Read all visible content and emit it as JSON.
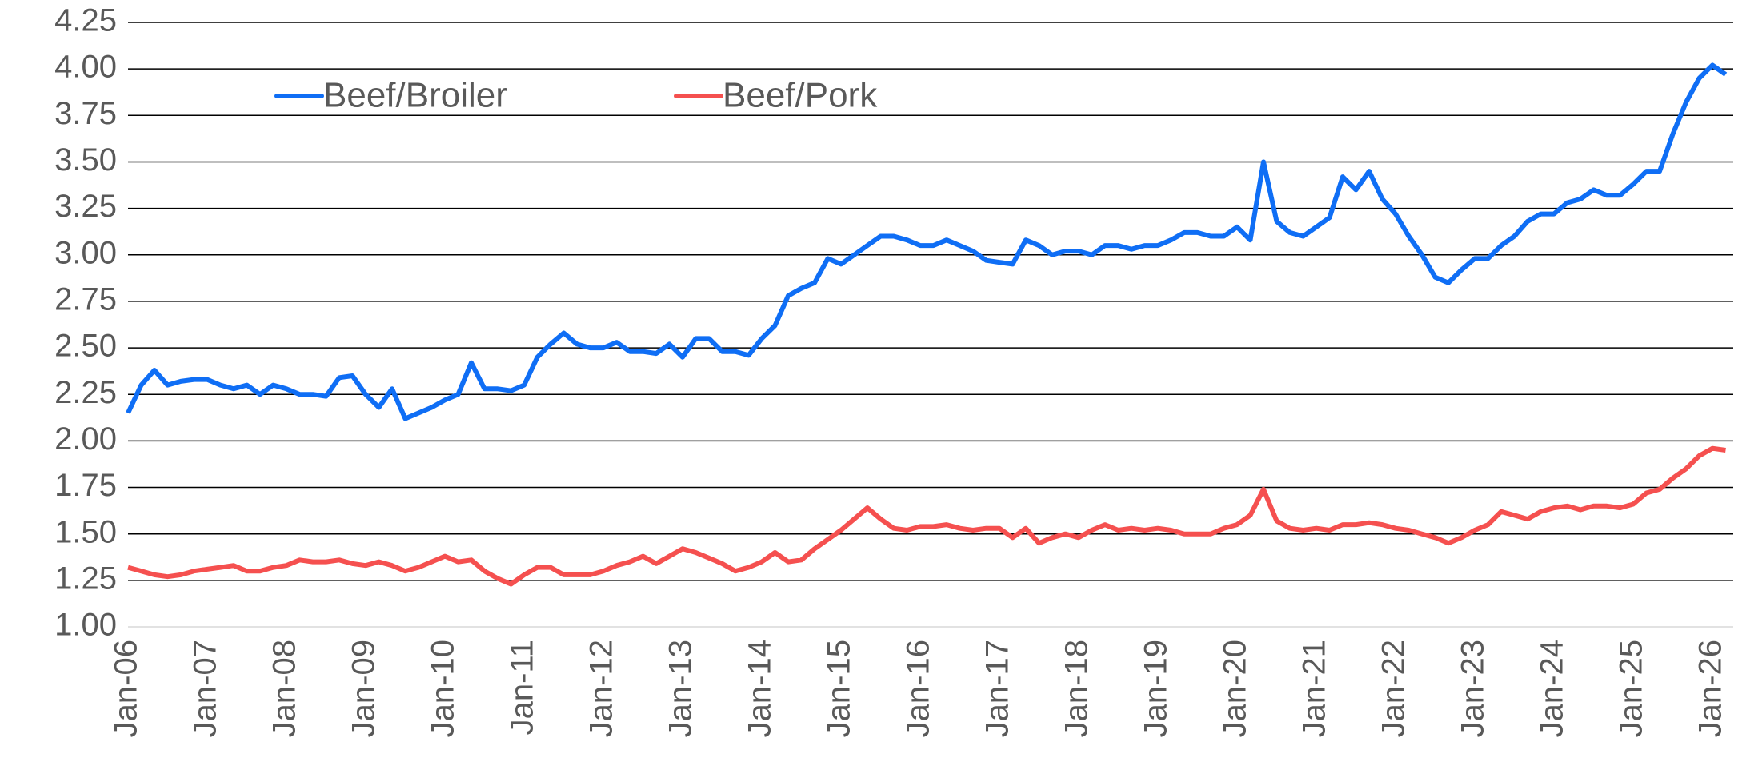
{
  "chart_data": {
    "type": "line",
    "categories": [
      "Jan-06",
      null,
      null,
      null,
      null,
      null,
      "Jan-07",
      null,
      null,
      null,
      null,
      null,
      "Jan-08",
      null,
      null,
      null,
      null,
      null,
      "Jan-09",
      null,
      null,
      null,
      null,
      null,
      "Jan-10",
      null,
      null,
      null,
      null,
      null,
      "Jan-11",
      null,
      null,
      null,
      null,
      null,
      "Jan-12",
      null,
      null,
      null,
      null,
      null,
      "Jan-13",
      null,
      null,
      null,
      null,
      null,
      "Jan-14",
      null,
      null,
      null,
      null,
      null,
      "Jan-15",
      null,
      null,
      null,
      null,
      null,
      "Jan-16",
      null,
      null,
      null,
      null,
      null,
      "Jan-17",
      null,
      null,
      null,
      null,
      null,
      "Jan-18",
      null,
      null,
      null,
      null,
      null,
      "Jan-19",
      null,
      null,
      null,
      null,
      null,
      "Jan-20",
      null,
      null,
      null,
      null,
      null,
      "Jan-21",
      null,
      null,
      null,
      null,
      null,
      "Jan-22",
      null,
      null,
      null,
      null,
      null,
      "Jan-23",
      null,
      null,
      null,
      null,
      null,
      "Jan-24",
      null,
      null,
      null,
      null,
      null,
      "Jan-25",
      null,
      null,
      null,
      null,
      null,
      "Jan-26",
      null
    ],
    "series": [
      {
        "name": "Beef/Broiler",
        "color": "#0f6ef5",
        "values": [
          2.15,
          2.3,
          2.38,
          2.3,
          2.32,
          2.33,
          2.33,
          2.3,
          2.28,
          2.3,
          2.25,
          2.3,
          2.28,
          2.25,
          2.25,
          2.24,
          2.34,
          2.35,
          2.25,
          2.18,
          2.28,
          2.12,
          2.15,
          2.18,
          2.22,
          2.25,
          2.42,
          2.28,
          2.28,
          2.27,
          2.3,
          2.45,
          2.52,
          2.58,
          2.52,
          2.5,
          2.5,
          2.53,
          2.48,
          2.48,
          2.47,
          2.52,
          2.45,
          2.55,
          2.55,
          2.48,
          2.48,
          2.46,
          2.55,
          2.62,
          2.78,
          2.82,
          2.85,
          2.98,
          2.95,
          3.0,
          3.05,
          3.1,
          3.1,
          3.08,
          3.05,
          3.05,
          3.08,
          3.05,
          3.02,
          2.97,
          2.96,
          2.95,
          3.08,
          3.05,
          3.0,
          3.02,
          3.02,
          3.0,
          3.05,
          3.05,
          3.03,
          3.05,
          3.05,
          3.08,
          3.12,
          3.12,
          3.1,
          3.1,
          3.15,
          3.08,
          3.5,
          3.18,
          3.12,
          3.1,
          3.15,
          3.2,
          3.42,
          3.35,
          3.45,
          3.3,
          3.22,
          3.1,
          3.0,
          2.88,
          2.85,
          2.92,
          2.98,
          2.98,
          3.05,
          3.1,
          3.18,
          3.22,
          3.22,
          3.28,
          3.3,
          3.35,
          3.32,
          3.32,
          3.38,
          3.45,
          3.45,
          3.65,
          3.82,
          3.95,
          4.02,
          3.97
        ]
      },
      {
        "name": "Beef/Pork",
        "color": "#f5504f",
        "values": [
          1.32,
          1.3,
          1.28,
          1.27,
          1.28,
          1.3,
          1.31,
          1.32,
          1.33,
          1.3,
          1.3,
          1.32,
          1.33,
          1.36,
          1.35,
          1.35,
          1.36,
          1.34,
          1.33,
          1.35,
          1.33,
          1.3,
          1.32,
          1.35,
          1.38,
          1.35,
          1.36,
          1.3,
          1.26,
          1.23,
          1.28,
          1.32,
          1.32,
          1.28,
          1.28,
          1.28,
          1.3,
          1.33,
          1.35,
          1.38,
          1.34,
          1.38,
          1.42,
          1.4,
          1.37,
          1.34,
          1.3,
          1.32,
          1.35,
          1.4,
          1.35,
          1.36,
          1.42,
          1.47,
          1.52,
          1.58,
          1.64,
          1.58,
          1.53,
          1.52,
          1.54,
          1.54,
          1.55,
          1.53,
          1.52,
          1.53,
          1.53,
          1.48,
          1.53,
          1.45,
          1.48,
          1.5,
          1.48,
          1.52,
          1.55,
          1.52,
          1.53,
          1.52,
          1.53,
          1.52,
          1.5,
          1.5,
          1.5,
          1.53,
          1.55,
          1.6,
          1.74,
          1.57,
          1.53,
          1.52,
          1.53,
          1.52,
          1.55,
          1.55,
          1.56,
          1.55,
          1.53,
          1.52,
          1.5,
          1.48,
          1.45,
          1.48,
          1.52,
          1.55,
          1.62,
          1.6,
          1.58,
          1.62,
          1.64,
          1.65,
          1.63,
          1.65,
          1.65,
          1.64,
          1.66,
          1.72,
          1.74,
          1.8,
          1.85,
          1.92,
          1.96,
          1.95
        ]
      }
    ],
    "ylim": [
      1.0,
      4.25
    ],
    "yticks": [
      {
        "value": 1,
        "label": "1.00"
      },
      1.25,
      {
        "value": 1.5,
        "label": "1.50"
      },
      1.75,
      {
        "value": 2,
        "label": "2.00"
      },
      2.25,
      {
        "value": 2.5,
        "label": "2.50"
      },
      2.75,
      {
        "value": 3,
        "label": "3.00"
      },
      3.25,
      {
        "value": 3.5,
        "label": "3.50"
      },
      3.75,
      {
        "value": 4,
        "label": "4.00"
      },
      4.25
    ],
    "grid": true,
    "legend": "top-left"
  }
}
